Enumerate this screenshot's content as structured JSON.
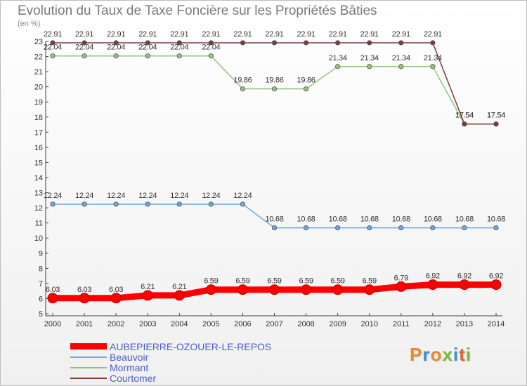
{
  "header": {
    "title": "Evolution du Taux de Taxe Foncière sur les Propriétés Bâties",
    "subtitle": "(en %)"
  },
  "branding": {
    "logo_text": "Proxiti",
    "logo_colors": [
      "#e8892a",
      "#3a8fd8",
      "#e8892a",
      "#7cb83a",
      "#3a8fd8",
      "#e85a2a",
      "#7cb83a"
    ]
  },
  "chart_data": {
    "type": "line",
    "title": "Evolution du Taux de Taxe Foncière sur les Propriétés Bâties",
    "ylabel": "(en %)",
    "xlabel": "",
    "x": [
      2000,
      2001,
      2002,
      2003,
      2004,
      2005,
      2006,
      2007,
      2008,
      2009,
      2010,
      2011,
      2012,
      2013,
      2014
    ],
    "ylim": [
      5,
      23
    ],
    "yticks": [
      5,
      6,
      7,
      8,
      9,
      10,
      11,
      12,
      13,
      14,
      15,
      16,
      17,
      18,
      19,
      20,
      21,
      22,
      23
    ],
    "grid": false,
    "legend_position": "bottom-left",
    "series": [
      {
        "name": "AUBEPIERRE-OZOUER-LE-REPOS",
        "color": "#ff0000",
        "emphasis": true,
        "values": [
          6.03,
          6.03,
          6.03,
          6.21,
          6.21,
          6.59,
          6.59,
          6.59,
          6.59,
          6.59,
          6.59,
          6.79,
          6.92,
          6.92,
          6.92
        ],
        "labels": [
          "6.03",
          "6.03",
          "6.03",
          "6.21",
          "6.21",
          "6.59",
          "6.59",
          "6.59",
          "6.59",
          "6.59",
          "6.59",
          "6.79",
          "6.92",
          "6.92",
          "6.92"
        ]
      },
      {
        "name": "Beauvoir",
        "color": "#6fa8dc",
        "values": [
          12.24,
          12.24,
          12.24,
          12.24,
          12.24,
          12.24,
          12.24,
          10.68,
          10.68,
          10.68,
          10.68,
          10.68,
          10.68,
          10.68,
          10.68
        ],
        "labels": [
          "12.24",
          "12.24",
          "12.24",
          "12.24",
          "12.24",
          "12.24",
          "12.24",
          "10.68",
          "10.68",
          "10.68",
          "10.68",
          "10.68",
          "10.68",
          "10.68",
          "10.68"
        ]
      },
      {
        "name": "Mormant",
        "color": "#93c47d",
        "values": [
          22.04,
          22.04,
          22.04,
          22.04,
          22.04,
          22.04,
          19.86,
          19.86,
          19.86,
          21.34,
          21.34,
          21.34,
          21.34,
          17.54,
          17.54
        ],
        "labels": [
          "22.04",
          "22.04",
          "22.04",
          "22.04",
          "22.04",
          "22.04",
          "19.86",
          "19.86",
          "19.86",
          "21.34",
          "21.34",
          "21.34",
          "21.34",
          "17.54",
          "17.54"
        ]
      },
      {
        "name": "Courtomer",
        "color": "#7b3b3b",
        "values": [
          22.91,
          22.91,
          22.91,
          22.91,
          22.91,
          22.91,
          22.91,
          22.91,
          22.91,
          22.91,
          22.91,
          22.91,
          22.91,
          17.54,
          17.54
        ],
        "labels": [
          "22.91",
          "22.91",
          "22.91",
          "22.91",
          "22.91",
          "22.91",
          "22.91",
          "22.91",
          "22.91",
          "22.91",
          "22.91",
          "22.91",
          "22.91",
          "17.54",
          "17.54"
        ]
      }
    ]
  }
}
